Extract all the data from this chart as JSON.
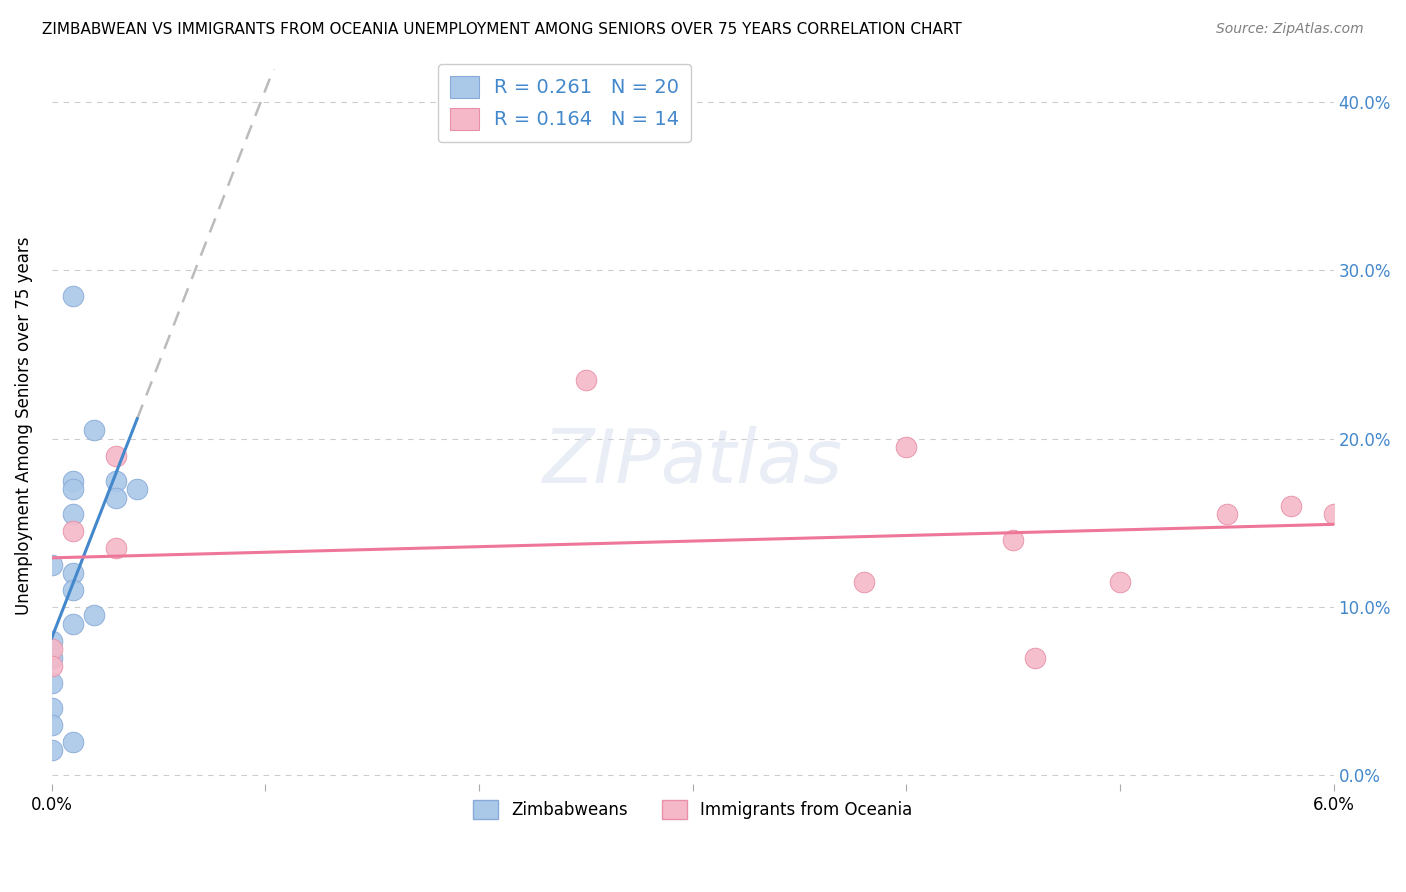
{
  "title": "ZIMBABWEAN VS IMMIGRANTS FROM OCEANIA UNEMPLOYMENT AMONG SENIORS OVER 75 YEARS CORRELATION CHART",
  "source": "Source: ZipAtlas.com",
  "ylabel": "Unemployment Among Seniors over 75 years",
  "ytick_labels": [
    "0.0%",
    "10.0%",
    "20.0%",
    "30.0%",
    "40.0%"
  ],
  "ytick_values": [
    0.0,
    0.1,
    0.2,
    0.3,
    0.4
  ],
  "xlim": [
    0.0,
    0.06
  ],
  "ylim": [
    -0.005,
    0.42
  ],
  "legend_label1": "Zimbabweans",
  "legend_label2": "Immigrants from Oceania",
  "R1": "0.261",
  "N1": "20",
  "R2": "0.164",
  "N2": "14",
  "color_blue": "#aac8e8",
  "color_pink": "#f5b8c8",
  "trendline_color_blue": "#4488cc",
  "trendline_color_pink": "#ee7799",
  "trendline_color_dashed": "#bbbbbb",
  "watermark": "ZIPatlas",
  "zim_x": [
    0.0,
    0.0,
    0.0,
    0.0,
    0.0,
    0.0,
    0.0,
    0.001,
    0.001,
    0.001,
    0.001,
    0.001,
    0.002,
    0.002,
    0.003,
    0.003,
    0.004,
    0.001,
    0.001,
    0.001
  ],
  "zim_y": [
    0.125,
    0.08,
    0.07,
    0.055,
    0.04,
    0.03,
    0.015,
    0.285,
    0.175,
    0.17,
    0.12,
    0.09,
    0.205,
    0.095,
    0.175,
    0.165,
    0.17,
    0.155,
    0.11,
    0.02
  ],
  "oce_x": [
    0.0,
    0.0,
    0.001,
    0.003,
    0.003,
    0.025,
    0.038,
    0.04,
    0.045,
    0.046,
    0.05,
    0.055,
    0.058,
    0.06
  ],
  "oce_y": [
    0.075,
    0.065,
    0.145,
    0.19,
    0.135,
    0.235,
    0.115,
    0.195,
    0.14,
    0.07,
    0.115,
    0.155,
    0.16,
    0.155
  ]
}
